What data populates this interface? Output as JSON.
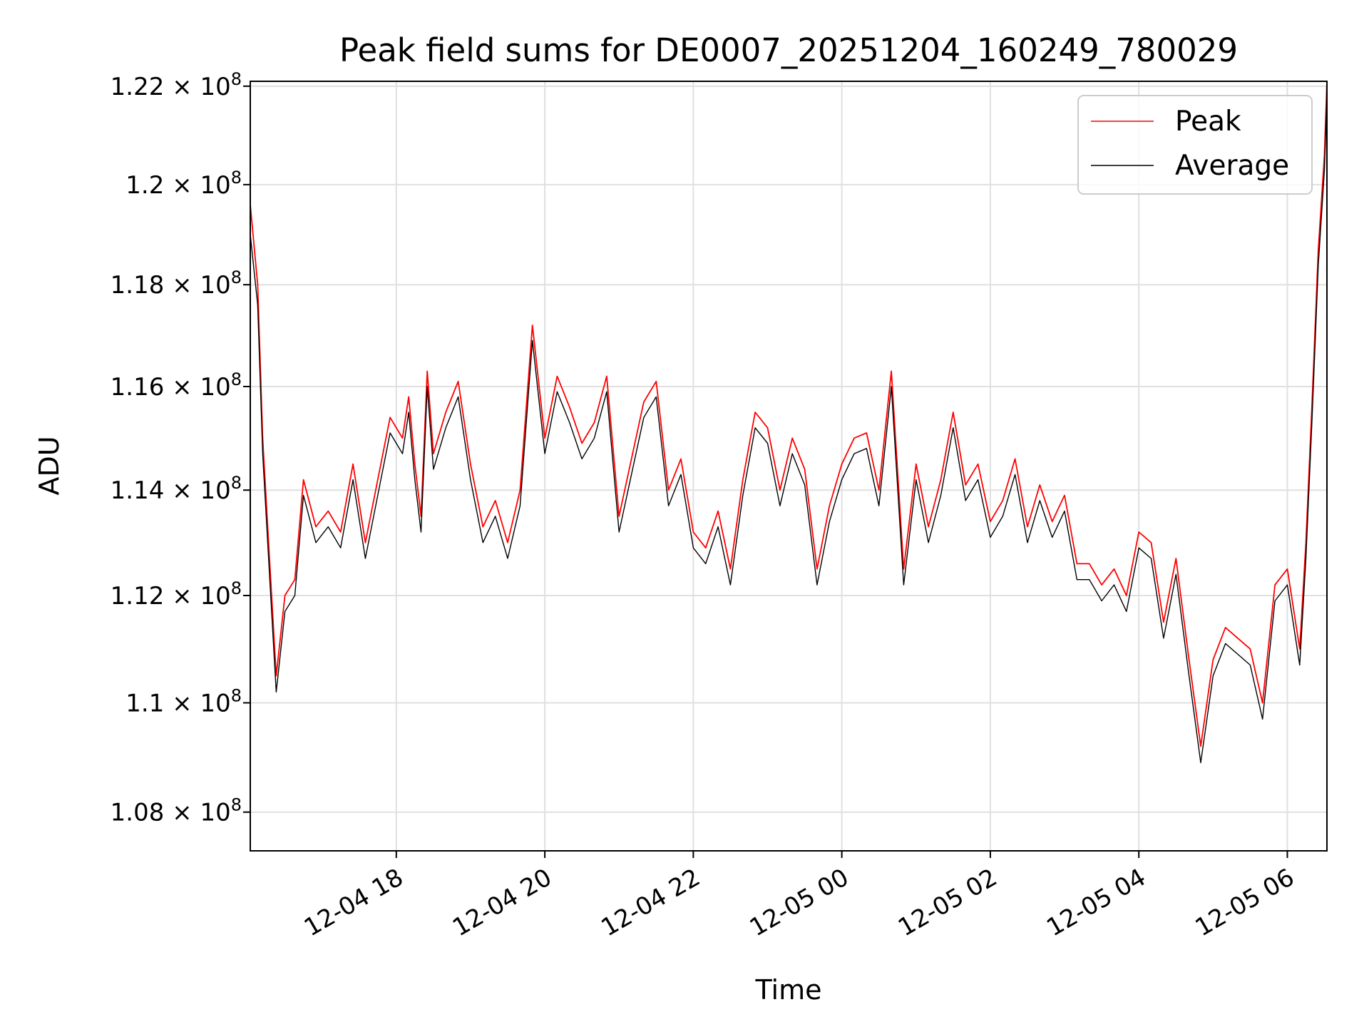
{
  "chart_data": {
    "type": "line",
    "title": "Peak field sums for DE0007_20251204_160249_780029",
    "xlabel": "Time",
    "ylabel": "ADU",
    "grid": true,
    "legend_position": "top-right",
    "y_scale": "log",
    "ylim": [
      107300000,
      122100000
    ],
    "xlim": [
      "2025-12-04 16:02",
      "2025-12-05 06:32"
    ],
    "x_tick_labels": [
      "12-04 18",
      "12-04 20",
      "12-04 22",
      "12-05 00",
      "12-05 02",
      "12-05 04",
      "12-05 06"
    ],
    "x_ticks": [
      "2025-12-04 18:00",
      "2025-12-04 20:00",
      "2025-12-04 22:00",
      "2025-12-05 00:00",
      "2025-12-05 02:00",
      "2025-12-05 04:00",
      "2025-12-05 06:00"
    ],
    "y_ticks": [
      {
        "value": 108000000,
        "mantissa": "1.08"
      },
      {
        "value": 110000000,
        "mantissa": "1.1"
      },
      {
        "value": 112000000,
        "mantissa": "1.12"
      },
      {
        "value": 114000000,
        "mantissa": "1.14"
      },
      {
        "value": 116000000,
        "mantissa": "1.16"
      },
      {
        "value": 118000000,
        "mantissa": "1.18"
      },
      {
        "value": 120000000,
        "mantissa": "1.2"
      },
      {
        "value": 122000000,
        "mantissa": "1.22"
      }
    ],
    "y_tick_base": "× 10",
    "y_tick_exponent": "8",
    "series": [
      {
        "name": "Peak",
        "color": "#ff0000",
        "x": [
          "2025-12-04 16:02",
          "2025-12-04 16:08",
          "2025-12-04 16:12",
          "2025-12-04 16:18",
          "2025-12-04 16:23",
          "2025-12-04 16:30",
          "2025-12-04 16:38",
          "2025-12-04 16:45",
          "2025-12-04 16:55",
          "2025-12-04 17:05",
          "2025-12-04 17:15",
          "2025-12-04 17:25",
          "2025-12-04 17:35",
          "2025-12-04 17:45",
          "2025-12-04 17:55",
          "2025-12-04 18:05",
          "2025-12-04 18:10",
          "2025-12-04 18:15",
          "2025-12-04 18:20",
          "2025-12-04 18:25",
          "2025-12-04 18:30",
          "2025-12-04 18:40",
          "2025-12-04 18:50",
          "2025-12-04 19:00",
          "2025-12-04 19:10",
          "2025-12-04 19:20",
          "2025-12-04 19:30",
          "2025-12-04 19:40",
          "2025-12-04 19:50",
          "2025-12-04 20:00",
          "2025-12-04 20:10",
          "2025-12-04 20:20",
          "2025-12-04 20:30",
          "2025-12-04 20:40",
          "2025-12-04 20:50",
          "2025-12-04 21:00",
          "2025-12-04 21:10",
          "2025-12-04 21:20",
          "2025-12-04 21:30",
          "2025-12-04 21:40",
          "2025-12-04 21:50",
          "2025-12-04 22:00",
          "2025-12-04 22:10",
          "2025-12-04 22:20",
          "2025-12-04 22:30",
          "2025-12-04 22:40",
          "2025-12-04 22:50",
          "2025-12-04 23:00",
          "2025-12-04 23:10",
          "2025-12-04 23:20",
          "2025-12-04 23:30",
          "2025-12-04 23:40",
          "2025-12-04 23:50",
          "2025-12-05 00:00",
          "2025-12-05 00:10",
          "2025-12-05 00:20",
          "2025-12-05 00:30",
          "2025-12-05 00:40",
          "2025-12-05 00:50",
          "2025-12-05 01:00",
          "2025-12-05 01:10",
          "2025-12-05 01:20",
          "2025-12-05 01:30",
          "2025-12-05 01:40",
          "2025-12-05 01:50",
          "2025-12-05 02:00",
          "2025-12-05 02:10",
          "2025-12-05 02:20",
          "2025-12-05 02:30",
          "2025-12-05 02:40",
          "2025-12-05 02:50",
          "2025-12-05 03:00",
          "2025-12-05 03:10",
          "2025-12-05 03:20",
          "2025-12-05 03:30",
          "2025-12-05 03:40",
          "2025-12-05 03:50",
          "2025-12-05 04:00",
          "2025-12-05 04:10",
          "2025-12-05 04:20",
          "2025-12-05 04:30",
          "2025-12-05 04:40",
          "2025-12-05 04:50",
          "2025-12-05 05:00",
          "2025-12-05 05:10",
          "2025-12-05 05:20",
          "2025-12-05 05:30",
          "2025-12-05 05:40",
          "2025-12-05 05:50",
          "2025-12-05 06:00",
          "2025-12-05 06:10",
          "2025-12-05 06:15",
          "2025-12-05 06:20",
          "2025-12-05 06:25",
          "2025-12-05 06:30",
          "2025-12-05 06:32"
        ],
        "values": [
          119600000,
          118000000,
          115000000,
          112500000,
          110500000,
          112000000,
          112300000,
          114200000,
          113300000,
          113600000,
          113200000,
          114500000,
          113000000,
          114200000,
          115400000,
          115000000,
          115800000,
          114500000,
          113500000,
          116300000,
          114700000,
          115500000,
          116100000,
          114500000,
          113300000,
          113800000,
          113000000,
          114000000,
          117200000,
          115000000,
          116200000,
          115600000,
          114900000,
          115300000,
          116200000,
          113500000,
          114600000,
          115700000,
          116100000,
          114000000,
          114600000,
          113200000,
          112900000,
          113600000,
          112500000,
          114200000,
          115500000,
          115200000,
          114000000,
          115000000,
          114400000,
          112500000,
          113700000,
          114500000,
          115000000,
          115100000,
          114000000,
          116300000,
          112500000,
          114500000,
          113300000,
          114200000,
          115500000,
          114100000,
          114500000,
          113400000,
          113800000,
          114600000,
          113300000,
          114100000,
          113400000,
          113900000,
          112600000,
          112600000,
          112200000,
          112500000,
          112000000,
          113200000,
          113000000,
          111500000,
          112700000,
          110900000,
          109200000,
          110800000,
          111400000,
          111200000,
          111000000,
          110000000,
          112200000,
          112500000,
          111000000,
          113000000,
          115700000,
          118700000,
          120600000,
          122100000
        ]
      },
      {
        "name": "Average",
        "color": "#000000",
        "x": [
          "2025-12-04 16:02",
          "2025-12-04 16:08",
          "2025-12-04 16:12",
          "2025-12-04 16:18",
          "2025-12-04 16:23",
          "2025-12-04 16:30",
          "2025-12-04 16:38",
          "2025-12-04 16:45",
          "2025-12-04 16:55",
          "2025-12-04 17:05",
          "2025-12-04 17:15",
          "2025-12-04 17:25",
          "2025-12-04 17:35",
          "2025-12-04 17:45",
          "2025-12-04 17:55",
          "2025-12-04 18:05",
          "2025-12-04 18:10",
          "2025-12-04 18:15",
          "2025-12-04 18:20",
          "2025-12-04 18:25",
          "2025-12-04 18:30",
          "2025-12-04 18:40",
          "2025-12-04 18:50",
          "2025-12-04 19:00",
          "2025-12-04 19:10",
          "2025-12-04 19:20",
          "2025-12-04 19:30",
          "2025-12-04 19:40",
          "2025-12-04 19:50",
          "2025-12-04 20:00",
          "2025-12-04 20:10",
          "2025-12-04 20:20",
          "2025-12-04 20:30",
          "2025-12-04 20:40",
          "2025-12-04 20:50",
          "2025-12-04 21:00",
          "2025-12-04 21:10",
          "2025-12-04 21:20",
          "2025-12-04 21:30",
          "2025-12-04 21:40",
          "2025-12-04 21:50",
          "2025-12-04 22:00",
          "2025-12-04 22:10",
          "2025-12-04 22:20",
          "2025-12-04 22:30",
          "2025-12-04 22:40",
          "2025-12-04 22:50",
          "2025-12-04 23:00",
          "2025-12-04 23:10",
          "2025-12-04 23:20",
          "2025-12-04 23:30",
          "2025-12-04 23:40",
          "2025-12-04 23:50",
          "2025-12-05 00:00",
          "2025-12-05 00:10",
          "2025-12-05 00:20",
          "2025-12-05 00:30",
          "2025-12-05 00:40",
          "2025-12-05 00:50",
          "2025-12-05 01:00",
          "2025-12-05 01:10",
          "2025-12-05 01:20",
          "2025-12-05 01:30",
          "2025-12-05 01:40",
          "2025-12-05 01:50",
          "2025-12-05 02:00",
          "2025-12-05 02:10",
          "2025-12-05 02:20",
          "2025-12-05 02:30",
          "2025-12-05 02:40",
          "2025-12-05 02:50",
          "2025-12-05 03:00",
          "2025-12-05 03:10",
          "2025-12-05 03:20",
          "2025-12-05 03:30",
          "2025-12-05 03:40",
          "2025-12-05 03:50",
          "2025-12-05 04:00",
          "2025-12-05 04:10",
          "2025-12-05 04:20",
          "2025-12-05 04:30",
          "2025-12-05 04:40",
          "2025-12-05 04:50",
          "2025-12-05 05:00",
          "2025-12-05 05:10",
          "2025-12-05 05:20",
          "2025-12-05 05:30",
          "2025-12-05 05:40",
          "2025-12-05 05:50",
          "2025-12-05 06:00",
          "2025-12-05 06:10",
          "2025-12-05 06:15",
          "2025-12-05 06:20",
          "2025-12-05 06:25",
          "2025-12-05 06:30",
          "2025-12-05 06:32"
        ],
        "values": [
          119000000,
          117600000,
          114700000,
          112200000,
          110200000,
          111700000,
          112000000,
          113900000,
          113000000,
          113300000,
          112900000,
          114200000,
          112700000,
          113900000,
          115100000,
          114700000,
          115500000,
          114200000,
          113200000,
          116000000,
          114400000,
          115200000,
          115800000,
          114200000,
          113000000,
          113500000,
          112700000,
          113700000,
          116900000,
          114700000,
          115900000,
          115300000,
          114600000,
          115000000,
          115900000,
          113200000,
          114300000,
          115400000,
          115800000,
          113700000,
          114300000,
          112900000,
          112600000,
          113300000,
          112200000,
          113900000,
          115200000,
          114900000,
          113700000,
          114700000,
          114100000,
          112200000,
          113400000,
          114200000,
          114700000,
          114800000,
          113700000,
          116000000,
          112200000,
          114200000,
          113000000,
          113900000,
          115200000,
          113800000,
          114200000,
          113100000,
          113500000,
          114300000,
          113000000,
          113800000,
          113100000,
          113600000,
          112300000,
          112300000,
          111900000,
          112200000,
          111700000,
          112900000,
          112700000,
          111200000,
          112400000,
          110600000,
          108900000,
          110500000,
          111100000,
          110900000,
          110700000,
          109700000,
          111900000,
          112200000,
          110700000,
          112700000,
          115400000,
          118400000,
          120300000,
          121800000
        ]
      }
    ]
  }
}
